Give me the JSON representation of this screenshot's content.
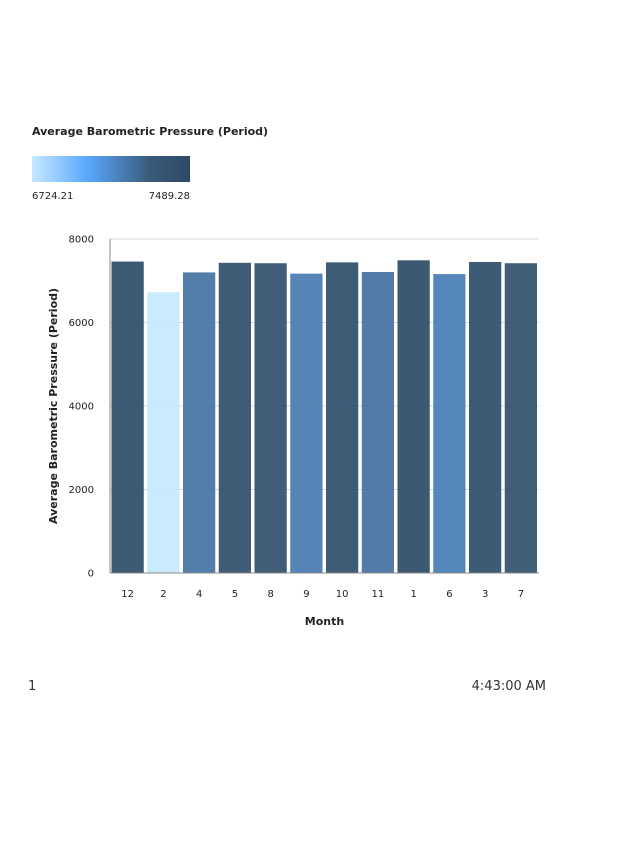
{
  "chart_data": {
    "type": "bar",
    "categories": [
      "12",
      "2",
      "4",
      "5",
      "8",
      "9",
      "10",
      "11",
      "1",
      "6",
      "3",
      "7"
    ],
    "values": [
      7460,
      6724.21,
      7200,
      7430,
      7420,
      7170,
      7440,
      7210,
      7489.28,
      7160,
      7450,
      7420
    ],
    "xlabel": "Month",
    "ylabel": "Average Barometric Pressure (Period)",
    "ylim": [
      0,
      8000
    ],
    "yticks": [
      0,
      2000,
      4000,
      6000,
      8000
    ],
    "grid": true,
    "color_scale": {
      "title": "Average Barometric Pressure (Period)",
      "min_label": "6724.21",
      "max_label": "7489.28",
      "min": 6724.21,
      "max": 7489.28,
      "colors": [
        "#c6e8fe",
        "#5aa8ff",
        "#3a5a78",
        "#2b4a66"
      ]
    }
  },
  "footer": {
    "page_number": "1",
    "time": "4:43:00 AM"
  }
}
